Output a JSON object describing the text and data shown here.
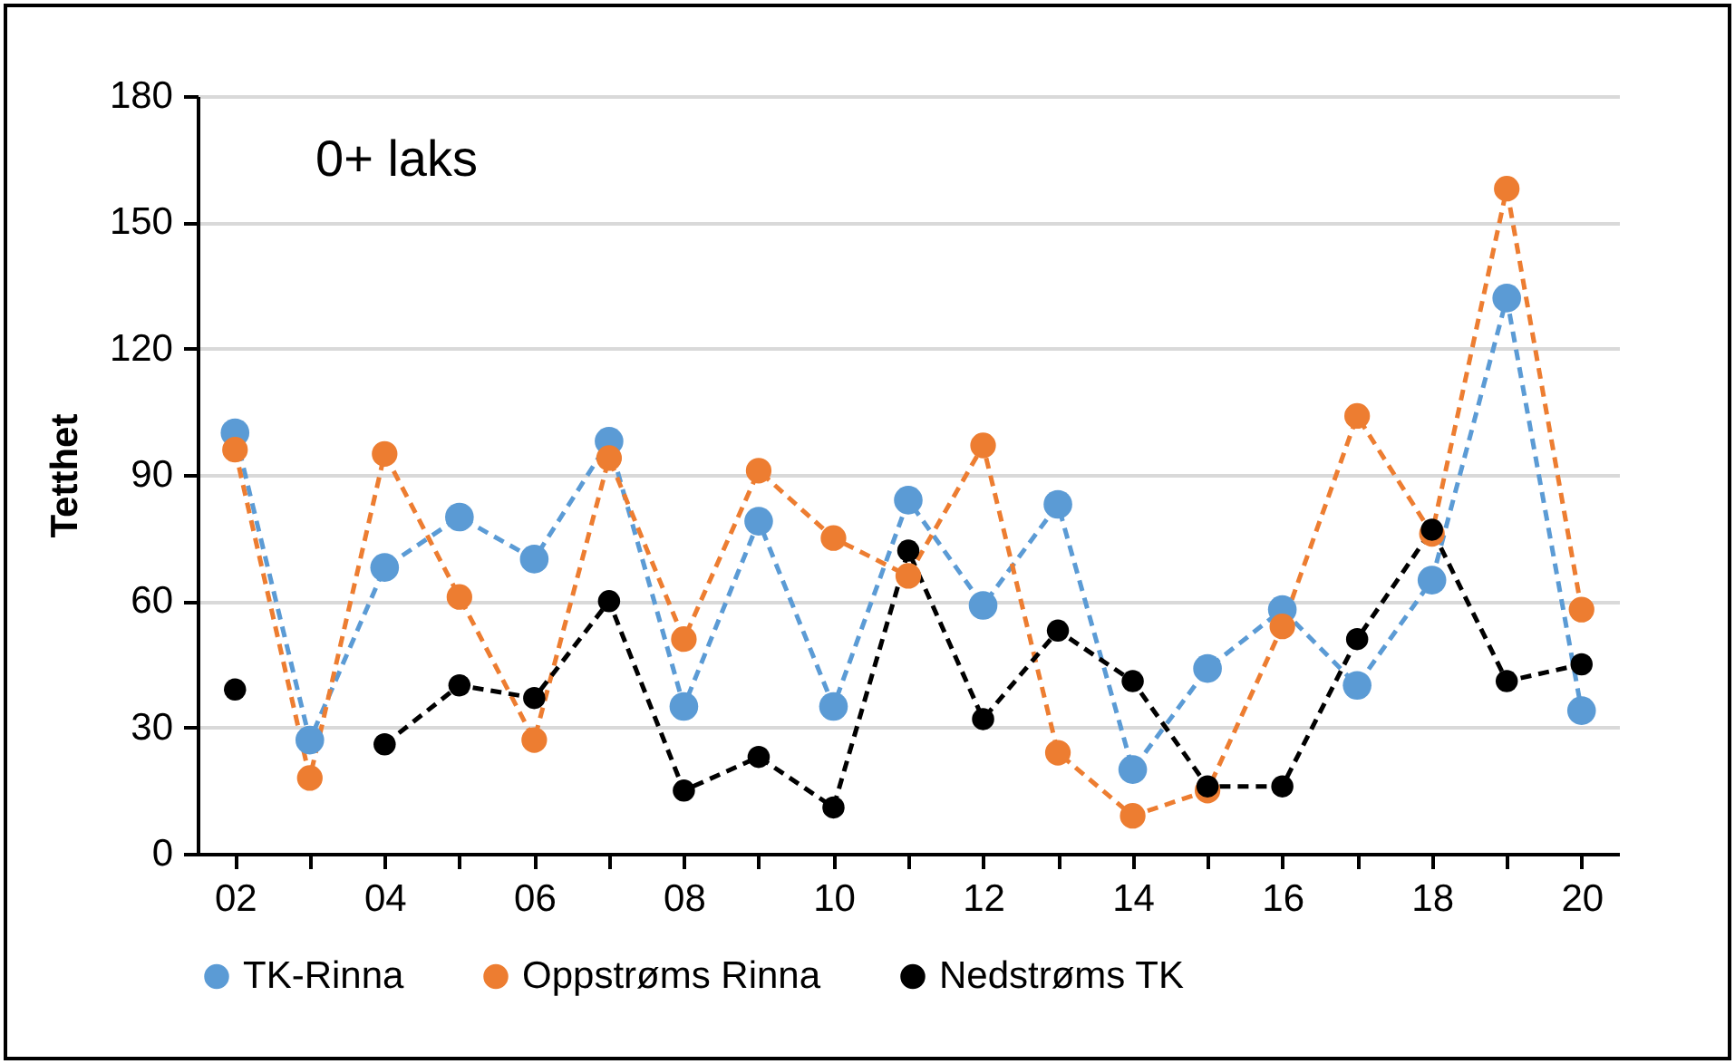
{
  "chart_data": {
    "type": "line",
    "annotations": [
      "0+ laks"
    ],
    "ylabel": "Tetthet",
    "categories": [
      "02",
      null,
      "04",
      null,
      "06",
      null,
      "08",
      null,
      "10",
      null,
      "12",
      null,
      "14",
      null,
      "16",
      null,
      "18",
      null,
      "20"
    ],
    "ylim": [
      0,
      180
    ],
    "yticks": [
      0,
      30,
      60,
      90,
      120,
      150,
      180
    ],
    "grid": "y",
    "legend": "bottom",
    "marker": "circle",
    "line_style": "dashed",
    "series": [
      {
        "name": "TK-Rinna",
        "color": "#5b9bd5",
        "values": [
          100,
          27,
          68,
          80,
          70,
          98,
          35,
          79,
          35,
          84,
          59,
          83,
          20,
          44,
          58,
          40,
          65,
          132,
          34
        ]
      },
      {
        "name": "Oppstrøms Rinna",
        "color": "#ed7d31",
        "values": [
          96,
          18,
          95,
          61,
          27,
          94,
          51,
          91,
          75,
          66,
          97,
          24,
          9,
          15,
          54,
          104,
          76,
          158,
          58
        ]
      },
      {
        "name": "Nedstrøms TK",
        "color": "#000000",
        "values": [
          39,
          null,
          26,
          40,
          37,
          60,
          15,
          23,
          11,
          72,
          32,
          53,
          41,
          16,
          16,
          51,
          77,
          41,
          45
        ]
      }
    ]
  }
}
